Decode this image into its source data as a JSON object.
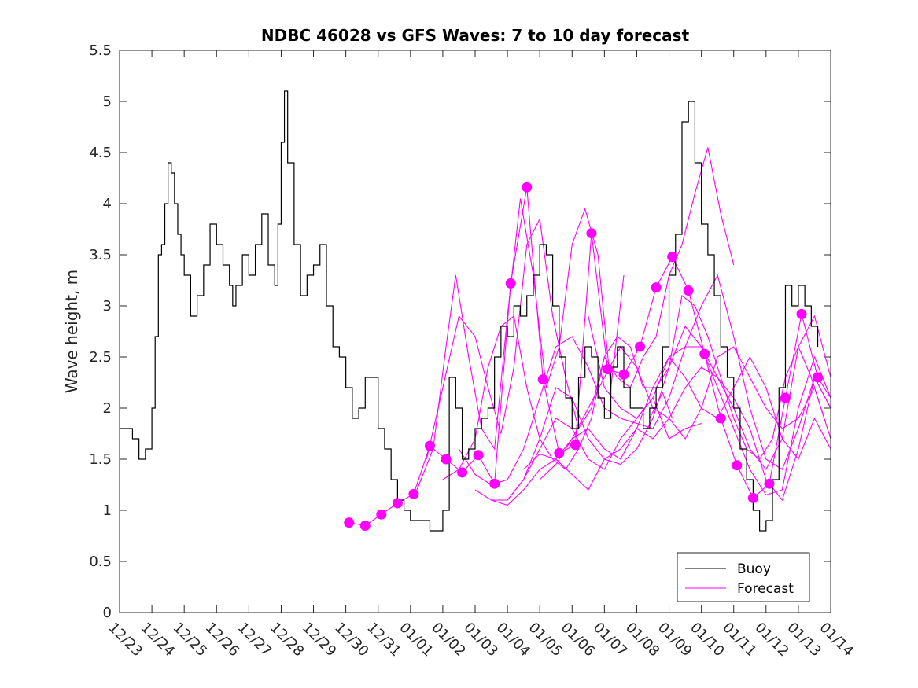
{
  "chart_data": {
    "type": "line",
    "title": "NDBC 46028 vs GFS Waves: 7 to 10 day forecast",
    "xlabel": "",
    "ylabel": "Wave height, m",
    "ylim": [
      0,
      5.5
    ],
    "yticks": [
      0,
      0.5,
      1,
      1.5,
      2,
      2.5,
      3,
      3.5,
      4,
      4.5,
      5,
      5.5
    ],
    "ytick_labels": [
      "0",
      "0.5",
      "1",
      "1.5",
      "2",
      "2.5",
      "3",
      "3.5",
      "4",
      "4.5",
      "5",
      "5.5"
    ],
    "x_unit": "days since 12/23",
    "xlim": [
      0,
      22
    ],
    "xtick_labels": [
      "12/23",
      "12/24",
      "12/25",
      "12/26",
      "12/27",
      "12/28",
      "12/29",
      "12/30",
      "12/31",
      "01/01",
      "01/02",
      "01/03",
      "01/04",
      "01/05",
      "01/06",
      "01/07",
      "01/08",
      "01/09",
      "01/10",
      "01/11",
      "01/12",
      "01/13",
      "01/14"
    ],
    "legend": {
      "position": "bottom-right",
      "entries": [
        "Buoy",
        "Forecast"
      ]
    },
    "colors": {
      "buoy": "#000000",
      "forecast": "#ff00ff"
    },
    "buoy": {
      "name": "Buoy",
      "x": [
        0,
        0.2,
        0.4,
        0.6,
        0.8,
        1.0,
        1.1,
        1.2,
        1.3,
        1.4,
        1.5,
        1.6,
        1.7,
        1.8,
        1.9,
        2.0,
        2.2,
        2.4,
        2.6,
        2.8,
        3.0,
        3.2,
        3.4,
        3.5,
        3.6,
        3.8,
        4.0,
        4.2,
        4.4,
        4.6,
        4.8,
        4.9,
        5.0,
        5.1,
        5.2,
        5.4,
        5.6,
        5.8,
        6.0,
        6.2,
        6.4,
        6.6,
        6.8,
        7.0,
        7.2,
        7.4,
        7.6,
        7.8,
        8.0,
        8.2,
        8.4,
        8.6,
        8.8,
        9.0,
        9.2,
        9.4,
        9.6,
        9.8,
        10.0,
        10.2,
        10.4,
        10.6,
        10.8,
        11.0,
        11.2,
        11.4,
        11.6,
        11.8,
        12.0,
        12.2,
        12.4,
        12.6,
        12.8,
        13.0,
        13.2,
        13.4,
        13.6,
        13.8,
        14.0,
        14.2,
        14.4,
        14.6,
        14.8,
        15.0,
        15.2,
        15.4,
        15.6,
        15.8,
        16.0,
        16.2,
        16.4,
        16.6,
        16.8,
        17.0,
        17.2,
        17.4,
        17.6,
        17.8,
        18.0,
        18.2,
        18.4,
        18.6,
        18.8,
        19.0,
        19.2,
        19.4,
        19.6,
        19.8,
        20.0,
        20.2,
        20.4,
        20.6,
        20.8,
        21.0,
        21.2,
        21.4,
        21.6
      ],
      "values": [
        1.8,
        1.8,
        1.7,
        1.5,
        1.6,
        2.0,
        2.7,
        3.5,
        3.6,
        4.0,
        4.4,
        4.3,
        4.0,
        3.7,
        3.5,
        3.3,
        2.9,
        3.1,
        3.4,
        3.8,
        3.6,
        3.4,
        3.2,
        3.0,
        3.2,
        3.5,
        3.3,
        3.6,
        3.9,
        3.4,
        3.2,
        3.8,
        4.6,
        5.1,
        4.4,
        3.6,
        3.1,
        3.3,
        3.4,
        3.6,
        3.0,
        2.6,
        2.5,
        2.2,
        1.9,
        2.0,
        2.3,
        2.3,
        1.8,
        1.6,
        1.3,
        1.1,
        1.0,
        0.9,
        0.9,
        0.9,
        0.8,
        0.8,
        1.0,
        2.3,
        2.0,
        1.5,
        1.6,
        1.8,
        1.9,
        2.0,
        2.5,
        2.8,
        2.7,
        3.0,
        2.9,
        3.1,
        3.3,
        3.6,
        3.5,
        3.0,
        2.5,
        2.1,
        1.8,
        2.3,
        2.6,
        2.5,
        2.1,
        1.9,
        2.4,
        2.6,
        2.2,
        2.0,
        2.0,
        1.8,
        2.0,
        2.2,
        2.6,
        3.3,
        3.7,
        4.8,
        5.0,
        4.4,
        3.8,
        3.5,
        3.1,
        2.6,
        2.3,
        2.0,
        1.6,
        1.3,
        1.0,
        0.8,
        0.9,
        1.3,
        2.2,
        3.2,
        3.0,
        3.2,
        3.0,
        2.8,
        2.6
      ]
    },
    "forecast_points": {
      "name": "Forecast",
      "x": [
        7.1,
        7.6,
        8.1,
        8.6,
        9.1,
        9.6,
        10.1,
        10.6,
        11.1,
        11.6,
        12.1,
        12.6,
        13.1,
        13.6,
        14.1,
        14.6,
        15.1,
        15.6,
        16.1,
        16.6,
        17.1,
        17.6,
        18.1,
        18.6,
        19.1,
        19.6,
        20.1,
        20.6,
        21.1,
        21.6
      ],
      "values": [
        0.88,
        0.85,
        0.96,
        1.07,
        1.16,
        1.63,
        1.5,
        1.37,
        1.54,
        1.26,
        3.22,
        4.16,
        2.28,
        1.56,
        1.64,
        3.71,
        2.38,
        2.33,
        2.6,
        3.18,
        3.48,
        3.15,
        2.53,
        1.9,
        1.44,
        1.12,
        1.26,
        2.1,
        2.92,
        2.3
      ]
    },
    "forecast_runs": [
      {
        "name": "Forecast",
        "x": [
          7.1,
          7.6,
          8.1,
          8.6,
          9.1,
          9.6,
          10.1,
          10.6,
          11.1,
          11.6,
          12.1,
          12.6,
          13.1,
          13.6,
          14.1,
          14.6,
          15.1,
          15.6,
          16.1,
          16.6,
          17.1,
          17.6,
          18.1,
          18.6,
          19.1,
          19.6,
          20.1,
          20.6,
          21.1,
          21.6,
          22.0
        ],
        "values": [
          0.88,
          0.85,
          0.96,
          1.07,
          1.16,
          1.63,
          1.5,
          1.37,
          1.54,
          1.26,
          3.22,
          4.16,
          2.28,
          1.56,
          1.64,
          3.71,
          2.38,
          2.33,
          2.6,
          3.18,
          3.48,
          3.15,
          2.53,
          1.9,
          1.44,
          1.12,
          1.26,
          2.1,
          2.92,
          2.3,
          2.1
        ]
      },
      {
        "name": "Forecast",
        "x": [
          9.2,
          9.7,
          10.1,
          10.4,
          10.8,
          11.2,
          11.6,
          12.0,
          12.4,
          12.8,
          13.2,
          13.6,
          14.0,
          14.4,
          14.8,
          15.2,
          15.6
        ],
        "values": [
          1.2,
          1.6,
          2.6,
          3.3,
          2.5,
          1.8,
          1.6,
          2.9,
          4.05,
          3.3,
          2.2,
          2.6,
          3.6,
          3.95,
          3.5,
          2.2,
          3.3
        ]
      },
      {
        "name": "Forecast",
        "x": [
          9.5,
          10.0,
          10.5,
          11.0,
          11.4,
          11.8,
          12.2,
          12.6,
          13.0,
          13.4,
          13.8,
          14.2,
          14.6,
          15.0,
          15.4,
          15.8,
          16.2,
          16.6,
          17.0,
          17.4,
          17.8,
          18.2,
          18.6,
          19.0
        ],
        "values": [
          1.5,
          2.2,
          2.9,
          2.7,
          2.2,
          1.75,
          2.4,
          3.6,
          3.85,
          2.9,
          2.3,
          1.8,
          2.0,
          2.5,
          2.3,
          2.2,
          2.5,
          2.7,
          3.3,
          3.6,
          4.1,
          4.55,
          3.9,
          3.4
        ]
      },
      {
        "name": "Forecast",
        "x": [
          10.0,
          10.5,
          11.0,
          11.4,
          11.8,
          12.2,
          12.6,
          13.0,
          13.4,
          13.8,
          14.2,
          14.6,
          15.0,
          15.4,
          15.8,
          16.2,
          16.6,
          17.0,
          17.4,
          17.8,
          18.2,
          18.6,
          19.0,
          19.4,
          19.8,
          20.2,
          20.6,
          21.0,
          21.4,
          21.8
        ],
        "values": [
          1.3,
          1.4,
          1.7,
          2.4,
          2.8,
          2.9,
          2.2,
          1.7,
          1.5,
          1.4,
          1.6,
          1.9,
          2.5,
          2.7,
          2.6,
          2.2,
          2.2,
          2.4,
          3.1,
          3.0,
          2.7,
          2.3,
          1.9,
          1.6,
          1.5,
          1.7,
          2.3,
          2.6,
          2.3,
          1.9
        ]
      },
      {
        "name": "Forecast",
        "x": [
          10.5,
          11.0,
          11.5,
          12.0,
          12.5,
          13.0,
          13.5,
          14.0,
          14.5,
          15.0,
          15.5,
          16.0,
          16.5,
          17.0,
          17.5,
          18.0,
          18.5,
          19.0,
          19.5,
          20.0,
          20.5,
          21.0,
          21.5,
          22.0
        ],
        "values": [
          1.6,
          1.35,
          1.25,
          1.3,
          1.6,
          2.1,
          2.6,
          2.7,
          2.4,
          2.0,
          1.9,
          1.85,
          1.8,
          2.1,
          2.6,
          3.0,
          3.3,
          2.7,
          2.0,
          1.5,
          1.4,
          1.8,
          2.3,
          2.0
        ]
      },
      {
        "name": "Forecast",
        "x": [
          11.0,
          11.5,
          12.0,
          12.5,
          13.0,
          13.5,
          14.0,
          14.5,
          15.0,
          15.5,
          16.0,
          16.5,
          17.0,
          17.5,
          18.0,
          18.5,
          19.0,
          19.5,
          20.0,
          20.5,
          21.0,
          21.5,
          22.0
        ],
        "values": [
          1.2,
          1.1,
          1.1,
          1.3,
          1.7,
          2.2,
          2.1,
          1.7,
          1.5,
          1.6,
          1.8,
          1.7,
          1.9,
          2.2,
          2.4,
          2.3,
          2.1,
          1.8,
          1.3,
          1.1,
          1.6,
          2.3,
          2.0
        ]
      },
      {
        "name": "Forecast",
        "x": [
          11.5,
          12.0,
          12.5,
          13.0,
          13.5,
          14.0,
          14.5,
          15.0,
          15.5,
          16.0,
          16.5,
          17.0,
          17.5,
          18.0,
          18.5,
          19.0,
          19.5,
          20.0,
          20.5,
          21.0,
          21.5,
          22.0
        ],
        "values": [
          1.1,
          1.05,
          1.2,
          1.4,
          1.5,
          1.35,
          1.2,
          1.5,
          1.45,
          1.6,
          1.9,
          2.4,
          2.8,
          2.6,
          2.2,
          1.8,
          1.4,
          1.15,
          1.2,
          2.0,
          2.5,
          2.1
        ]
      },
      {
        "name": "Forecast",
        "x": [
          12.0,
          12.5,
          13.0,
          13.5,
          14.0,
          14.5,
          15.0,
          15.5,
          16.0,
          16.5,
          17.0,
          17.5,
          18.0,
          18.5,
          19.0,
          19.5,
          20.0,
          20.5,
          21.0,
          21.5,
          22.0
        ],
        "values": [
          1.1,
          1.3,
          1.6,
          1.9,
          1.8,
          1.5,
          1.4,
          1.7,
          1.9,
          2.1,
          2.5,
          2.6,
          2.6,
          2.3,
          2.0,
          1.6,
          1.4,
          1.7,
          2.6,
          2.9,
          2.3
        ]
      },
      {
        "name": "Forecast",
        "x": [
          12.5,
          13.0,
          13.5,
          14.0,
          14.5,
          15.0,
          15.5,
          16.0,
          16.5,
          17.0,
          17.5,
          18.0,
          18.5,
          19.0,
          19.5,
          20.0,
          20.5,
          21.0,
          21.5,
          22.0
        ],
        "values": [
          1.4,
          1.55,
          1.5,
          1.7,
          2.0,
          2.3,
          2.6,
          2.4,
          2.0,
          1.9,
          1.7,
          2.0,
          2.5,
          2.6,
          2.3,
          2.0,
          1.8,
          1.9,
          2.2,
          1.7
        ]
      },
      {
        "name": "Forecast",
        "x": [
          13.0,
          13.5,
          14.0,
          14.5,
          15.0,
          15.5,
          16.0,
          16.5,
          17.0,
          17.5,
          18.0,
          18.5,
          19.0,
          19.5,
          20.0,
          20.5,
          21.0,
          21.5,
          22.0
        ],
        "values": [
          1.3,
          1.45,
          1.7,
          1.8,
          1.6,
          1.5,
          1.8,
          2.2,
          2.5,
          2.3,
          2.0,
          1.9,
          2.2,
          2.5,
          2.2,
          1.7,
          1.5,
          1.9,
          1.6
        ]
      },
      {
        "name": "Forecast",
        "x": [
          14.5,
          15.0,
          15.5,
          16.0,
          16.5,
          17.0,
          17.5,
          18.0
        ],
        "values": [
          2.9,
          2.2,
          2.0,
          1.9,
          2.1,
          1.7,
          1.8,
          1.85
        ]
      },
      {
        "name": "Forecast",
        "x": [
          16.4,
          16.8,
          17.1
        ],
        "values": [
          1.9,
          2.15,
          1.9
        ]
      }
    ]
  }
}
